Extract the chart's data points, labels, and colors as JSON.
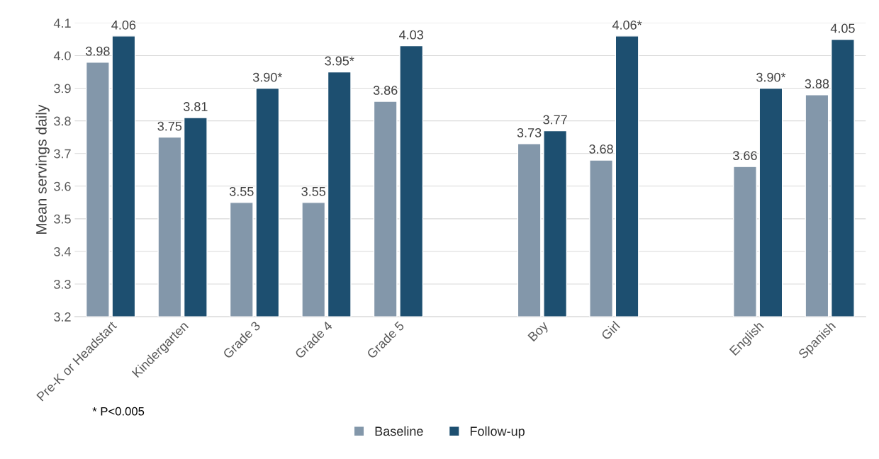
{
  "chart_data": {
    "type": "bar",
    "ylabel": "Mean servings daily",
    "categories": [
      "Pre-K or Headstart",
      "Kindergarten",
      "Grade 3",
      "Grade 4",
      "Grade 5",
      null,
      "Boy",
      "Girl",
      null,
      "English",
      "Spanish"
    ],
    "series": [
      {
        "name": "Baseline",
        "color": "#8397aa",
        "values": [
          3.98,
          3.75,
          3.55,
          3.55,
          3.86,
          null,
          3.73,
          3.68,
          null,
          3.66,
          3.88
        ],
        "value_labels": [
          "3.98",
          "3.75",
          "3.55",
          "3.55",
          "3.86",
          null,
          "3.73",
          "3.68",
          null,
          "3.66",
          "3.88"
        ]
      },
      {
        "name": "Follow-up",
        "color": "#1d4f70",
        "values": [
          4.06,
          3.81,
          3.9,
          3.95,
          4.03,
          null,
          3.77,
          4.06,
          null,
          3.9,
          4.05
        ],
        "value_labels": [
          "4.06",
          "3.81",
          "3.90*",
          "3.95*",
          "4.03",
          null,
          "3.77",
          "4.06*",
          null,
          "3.90*",
          "4.05"
        ]
      }
    ],
    "ylim": [
      3.2,
      4.1
    ],
    "yticks": [
      3.2,
      3.3,
      3.4,
      3.5,
      3.6,
      3.7,
      3.8,
      3.9,
      {
        "value": 4,
        "label": "4.0"
      },
      4.1
    ],
    "grid": "y",
    "legend": "bottom",
    "annotations": [
      "* P<0.005"
    ]
  }
}
